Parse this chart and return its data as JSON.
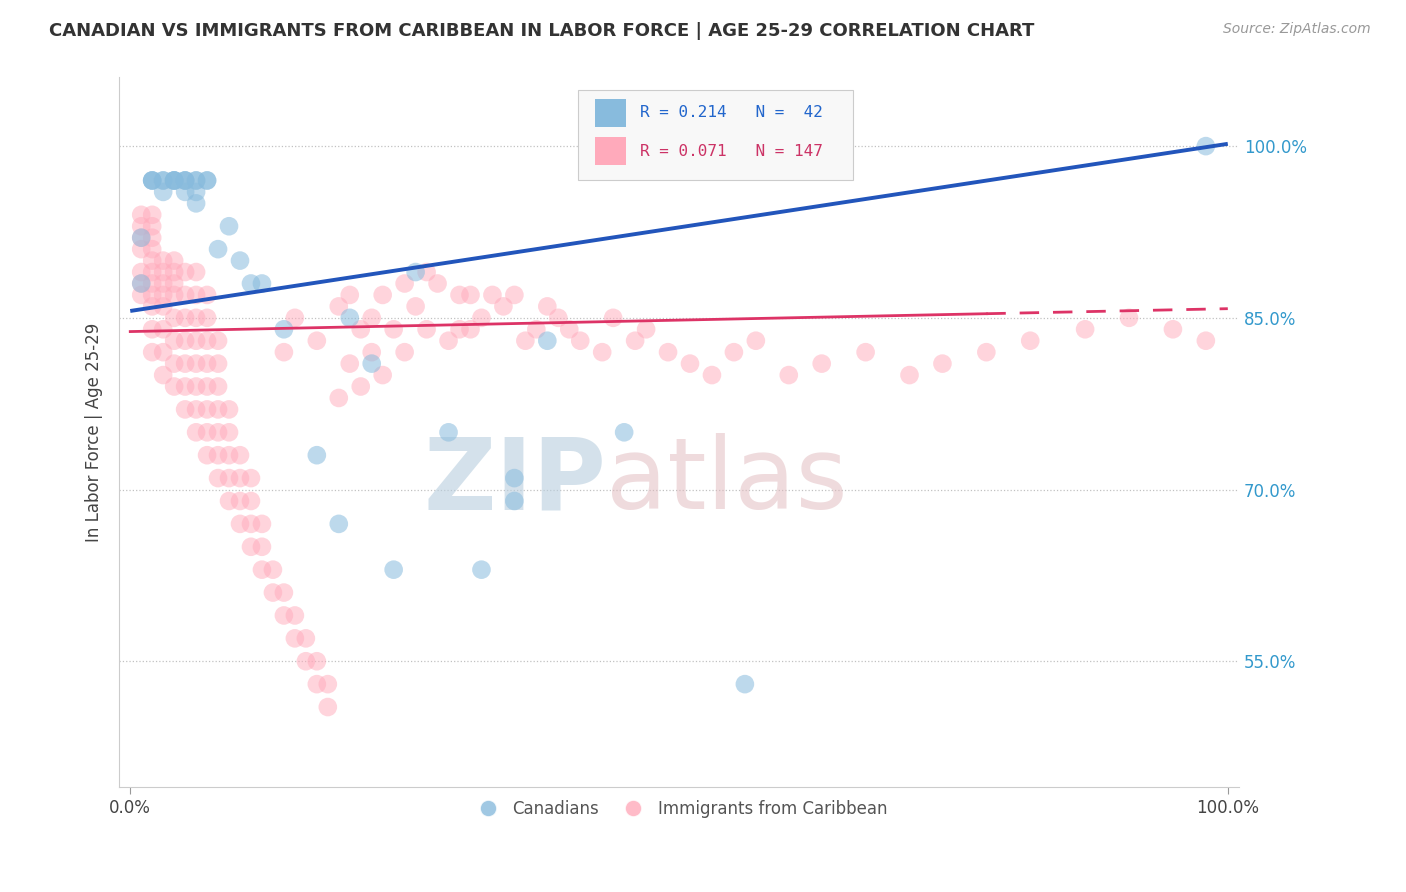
{
  "title": "CANADIAN VS IMMIGRANTS FROM CARIBBEAN IN LABOR FORCE | AGE 25-29 CORRELATION CHART",
  "source": "Source: ZipAtlas.com",
  "ylabel": "In Labor Force | Age 25-29",
  "xlim": [
    -0.01,
    1.01
  ],
  "ylim": [
    0.44,
    1.06
  ],
  "yticks": [
    0.55,
    0.7,
    0.85,
    1.0
  ],
  "yright_labels": [
    "55.0%",
    "70.0%",
    "85.0%",
    "100.0%"
  ],
  "xtick_labels": [
    "0.0%",
    "100.0%"
  ],
  "legend_r1": "R = 0.214",
  "legend_n1": "N =  42",
  "legend_r2": "R = 0.071",
  "legend_n2": "N = 147",
  "canadians_color": "#88bbdd",
  "immigrants_color": "#ffaabb",
  "trendline_canadian_color": "#2255bb",
  "trendline_immigrant_color": "#dd3366",
  "watermark_zip_color": "#c8d8e8",
  "watermark_atlas_color": "#e8c8cc",
  "can_trend_x": [
    0.0,
    1.0
  ],
  "can_trend_y": [
    0.856,
    1.002
  ],
  "imm_trend_x": [
    0.0,
    1.0
  ],
  "imm_trend_y": [
    0.838,
    0.858
  ],
  "canadians_x": [
    0.01,
    0.01,
    0.02,
    0.02,
    0.02,
    0.03,
    0.03,
    0.03,
    0.04,
    0.04,
    0.04,
    0.04,
    0.05,
    0.05,
    0.05,
    0.05,
    0.06,
    0.06,
    0.06,
    0.06,
    0.07,
    0.07,
    0.08,
    0.09,
    0.1,
    0.11,
    0.12,
    0.14,
    0.17,
    0.19,
    0.2,
    0.22,
    0.24,
    0.26,
    0.29,
    0.32,
    0.35,
    0.38,
    0.45,
    0.56,
    0.35,
    0.98
  ],
  "canadians_y": [
    0.88,
    0.92,
    0.97,
    0.97,
    0.97,
    0.96,
    0.97,
    0.97,
    0.97,
    0.97,
    0.97,
    0.97,
    0.96,
    0.97,
    0.97,
    0.97,
    0.95,
    0.96,
    0.97,
    0.97,
    0.97,
    0.97,
    0.91,
    0.93,
    0.9,
    0.88,
    0.88,
    0.84,
    0.73,
    0.67,
    0.85,
    0.81,
    0.63,
    0.89,
    0.75,
    0.63,
    0.69,
    0.83,
    0.75,
    0.53,
    0.71,
    1.0
  ],
  "immigrants_x": [
    0.01,
    0.01,
    0.01,
    0.01,
    0.01,
    0.01,
    0.01,
    0.02,
    0.02,
    0.02,
    0.02,
    0.02,
    0.02,
    0.02,
    0.02,
    0.02,
    0.02,
    0.02,
    0.03,
    0.03,
    0.03,
    0.03,
    0.03,
    0.03,
    0.03,
    0.03,
    0.04,
    0.04,
    0.04,
    0.04,
    0.04,
    0.04,
    0.04,
    0.04,
    0.05,
    0.05,
    0.05,
    0.05,
    0.05,
    0.05,
    0.05,
    0.06,
    0.06,
    0.06,
    0.06,
    0.06,
    0.06,
    0.06,
    0.06,
    0.07,
    0.07,
    0.07,
    0.07,
    0.07,
    0.07,
    0.07,
    0.07,
    0.08,
    0.08,
    0.08,
    0.08,
    0.08,
    0.08,
    0.08,
    0.09,
    0.09,
    0.09,
    0.09,
    0.09,
    0.1,
    0.1,
    0.1,
    0.1,
    0.11,
    0.11,
    0.11,
    0.11,
    0.12,
    0.12,
    0.12,
    0.13,
    0.13,
    0.14,
    0.14,
    0.14,
    0.15,
    0.15,
    0.15,
    0.16,
    0.16,
    0.17,
    0.17,
    0.17,
    0.18,
    0.18,
    0.19,
    0.19,
    0.2,
    0.2,
    0.21,
    0.21,
    0.22,
    0.22,
    0.23,
    0.23,
    0.24,
    0.25,
    0.25,
    0.26,
    0.27,
    0.27,
    0.28,
    0.29,
    0.3,
    0.3,
    0.31,
    0.32,
    0.33,
    0.34,
    0.35,
    0.36,
    0.37,
    0.38,
    0.39,
    0.4,
    0.41,
    0.43,
    0.44,
    0.46,
    0.47,
    0.49,
    0.51,
    0.53,
    0.55,
    0.57,
    0.6,
    0.63,
    0.67,
    0.71,
    0.74,
    0.78,
    0.82,
    0.87,
    0.91,
    0.95,
    0.98,
    0.31
  ],
  "immigrants_y": [
    0.87,
    0.88,
    0.89,
    0.91,
    0.92,
    0.93,
    0.94,
    0.82,
    0.84,
    0.86,
    0.87,
    0.88,
    0.89,
    0.9,
    0.91,
    0.92,
    0.93,
    0.94,
    0.8,
    0.82,
    0.84,
    0.86,
    0.87,
    0.88,
    0.89,
    0.9,
    0.79,
    0.81,
    0.83,
    0.85,
    0.87,
    0.88,
    0.89,
    0.9,
    0.77,
    0.79,
    0.81,
    0.83,
    0.85,
    0.87,
    0.89,
    0.75,
    0.77,
    0.79,
    0.81,
    0.83,
    0.85,
    0.87,
    0.89,
    0.73,
    0.75,
    0.77,
    0.79,
    0.81,
    0.83,
    0.85,
    0.87,
    0.71,
    0.73,
    0.75,
    0.77,
    0.79,
    0.81,
    0.83,
    0.69,
    0.71,
    0.73,
    0.75,
    0.77,
    0.67,
    0.69,
    0.71,
    0.73,
    0.65,
    0.67,
    0.69,
    0.71,
    0.63,
    0.65,
    0.67,
    0.61,
    0.63,
    0.59,
    0.61,
    0.82,
    0.57,
    0.59,
    0.85,
    0.55,
    0.57,
    0.53,
    0.55,
    0.83,
    0.51,
    0.53,
    0.86,
    0.78,
    0.81,
    0.87,
    0.84,
    0.79,
    0.85,
    0.82,
    0.87,
    0.8,
    0.84,
    0.88,
    0.82,
    0.86,
    0.89,
    0.84,
    0.88,
    0.83,
    0.87,
    0.84,
    0.87,
    0.85,
    0.87,
    0.86,
    0.87,
    0.83,
    0.84,
    0.86,
    0.85,
    0.84,
    0.83,
    0.82,
    0.85,
    0.83,
    0.84,
    0.82,
    0.81,
    0.8,
    0.82,
    0.83,
    0.8,
    0.81,
    0.82,
    0.8,
    0.81,
    0.82,
    0.83,
    0.84,
    0.85,
    0.84,
    0.83,
    0.84
  ]
}
